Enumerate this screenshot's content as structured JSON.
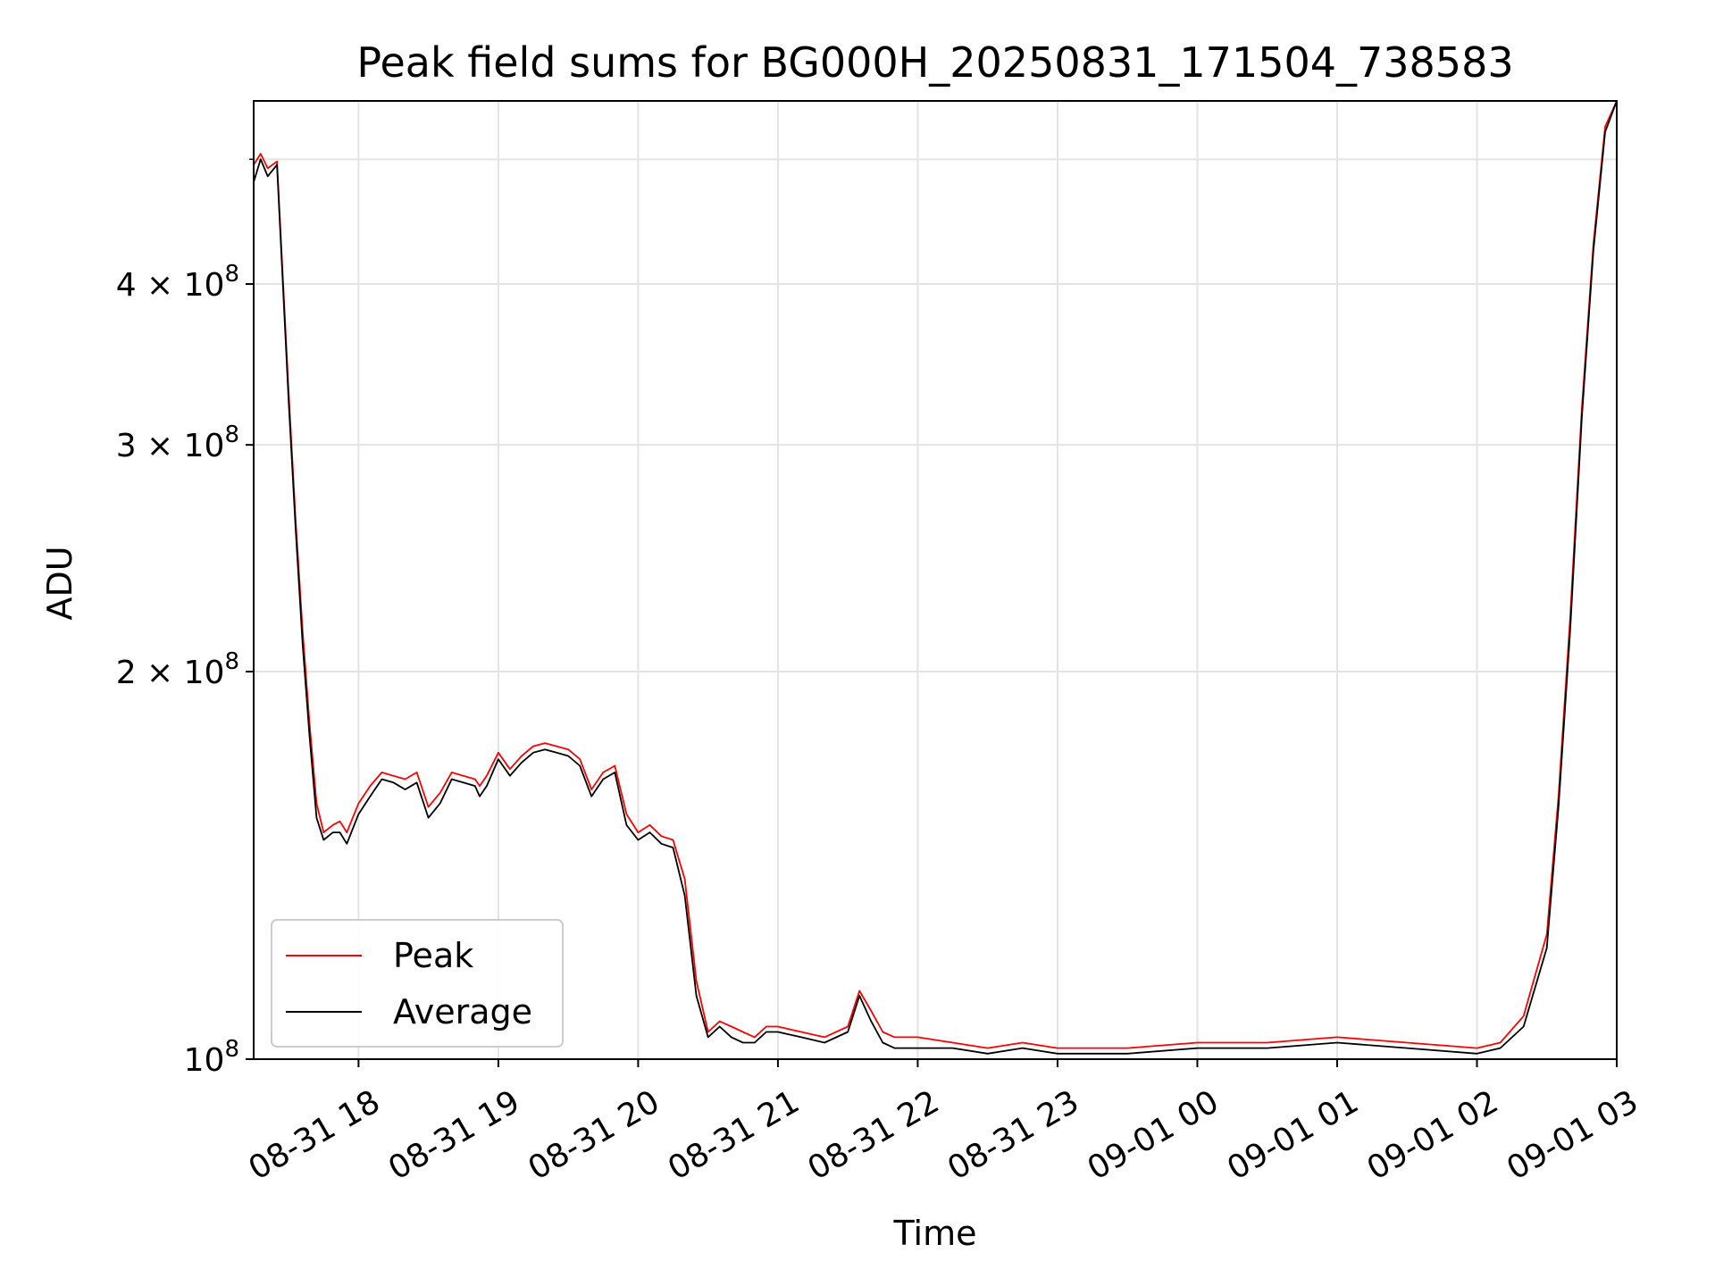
{
  "chart_data": {
    "type": "line",
    "title": "Peak field sums for BG000H_20250831_171504_738583",
    "xlabel": "Time",
    "ylabel": "ADU",
    "x_scale": "time",
    "y_scale": "log",
    "xlim": [
      "2025-08-31 17:15",
      "2025-09-01 03:00"
    ],
    "ylim": [
      100000000,
      555000000
    ],
    "x_ticks": [
      {
        "value": "2025-08-31 18:00",
        "label": "08-31 18"
      },
      {
        "value": "2025-08-31 19:00",
        "label": "08-31 19"
      },
      {
        "value": "2025-08-31 20:00",
        "label": "08-31 20"
      },
      {
        "value": "2025-08-31 21:00",
        "label": "08-31 21"
      },
      {
        "value": "2025-08-31 22:00",
        "label": "08-31 22"
      },
      {
        "value": "2025-08-31 23:00",
        "label": "08-31 23"
      },
      {
        "value": "2025-09-01 00:00",
        "label": "09-01 00"
      },
      {
        "value": "2025-09-01 01:00",
        "label": "09-01 01"
      },
      {
        "value": "2025-09-01 02:00",
        "label": "09-01 02"
      },
      {
        "value": "2025-09-01 03:00",
        "label": "09-01 03"
      }
    ],
    "y_ticks": [
      {
        "value": 100000000,
        "base": "10",
        "exp": "8"
      },
      {
        "value": 200000000,
        "base": "2 × 10",
        "exp": "8"
      },
      {
        "value": 300000000,
        "base": "3 × 10",
        "exp": "8"
      },
      {
        "value": 400000000,
        "base": "4 × 10",
        "exp": "8"
      }
    ],
    "grid": true,
    "legend_position": "lower-left",
    "series": [
      {
        "name": "Peak",
        "color": "#ff0000",
        "x": [
          "2025-08-31 17:15",
          "2025-08-31 17:18",
          "2025-08-31 17:21",
          "2025-08-31 17:25",
          "2025-08-31 17:30",
          "2025-08-31 17:33",
          "2025-08-31 17:36",
          "2025-08-31 17:39",
          "2025-08-31 17:42",
          "2025-08-31 17:45",
          "2025-08-31 17:49",
          "2025-08-31 17:52",
          "2025-08-31 17:55",
          "2025-08-31 18:00",
          "2025-08-31 18:05",
          "2025-08-31 18:10",
          "2025-08-31 18:15",
          "2025-08-31 18:20",
          "2025-08-31 18:25",
          "2025-08-31 18:30",
          "2025-08-31 18:35",
          "2025-08-31 18:40",
          "2025-08-31 18:45",
          "2025-08-31 18:50",
          "2025-08-31 18:52",
          "2025-08-31 18:55",
          "2025-08-31 19:00",
          "2025-08-31 19:05",
          "2025-08-31 19:10",
          "2025-08-31 19:15",
          "2025-08-31 19:20",
          "2025-08-31 19:25",
          "2025-08-31 19:30",
          "2025-08-31 19:35",
          "2025-08-31 19:40",
          "2025-08-31 19:45",
          "2025-08-31 19:50",
          "2025-08-31 19:55",
          "2025-08-31 20:00",
          "2025-08-31 20:05",
          "2025-08-31 20:10",
          "2025-08-31 20:15",
          "2025-08-31 20:20",
          "2025-08-31 20:25",
          "2025-08-31 20:30",
          "2025-08-31 20:35",
          "2025-08-31 20:40",
          "2025-08-31 20:45",
          "2025-08-31 20:50",
          "2025-08-31 20:55",
          "2025-08-31 21:00",
          "2025-08-31 21:10",
          "2025-08-31 21:20",
          "2025-08-31 21:30",
          "2025-08-31 21:35",
          "2025-08-31 21:40",
          "2025-08-31 21:45",
          "2025-08-31 21:50",
          "2025-08-31 22:00",
          "2025-08-31 22:15",
          "2025-08-31 22:30",
          "2025-08-31 22:45",
          "2025-08-31 23:00",
          "2025-08-31 23:30",
          "2025-09-01 00:00",
          "2025-09-01 00:30",
          "2025-09-01 01:00",
          "2025-09-01 01:30",
          "2025-09-01 02:00",
          "2025-09-01 02:10",
          "2025-09-01 02:20",
          "2025-09-01 02:30",
          "2025-09-01 02:35",
          "2025-09-01 02:40",
          "2025-09-01 02:45",
          "2025-09-01 02:50",
          "2025-09-01 02:55",
          "2025-09-01 03:00"
        ],
        "values": [
          495000000,
          505000000,
          492000000,
          498000000,
          330000000,
          262000000,
          215000000,
          182000000,
          158000000,
          150000000,
          152000000,
          153000000,
          150000000,
          158000000,
          163000000,
          167000000,
          166000000,
          165000000,
          167000000,
          157000000,
          161000000,
          167000000,
          166000000,
          165000000,
          163000000,
          166000000,
          173000000,
          168000000,
          172000000,
          175000000,
          176000000,
          175000000,
          174000000,
          171000000,
          162000000,
          167000000,
          169000000,
          155000000,
          150000000,
          152000000,
          149000000,
          148000000,
          138000000,
          115000000,
          105000000,
          107000000,
          106000000,
          105000000,
          104000000,
          106000000,
          106000000,
          105000000,
          104000000,
          106000000,
          113000000,
          109000000,
          105000000,
          104000000,
          104000000,
          103000000,
          102000000,
          103000000,
          102000000,
          102000000,
          103000000,
          103000000,
          104000000,
          103000000,
          102000000,
          103000000,
          108000000,
          125000000,
          160000000,
          220000000,
          320000000,
          430000000,
          530000000,
          555000000
        ]
      },
      {
        "name": "Average",
        "color": "#000000",
        "x": [
          "2025-08-31 17:15",
          "2025-08-31 17:18",
          "2025-08-31 17:21",
          "2025-08-31 17:25",
          "2025-08-31 17:30",
          "2025-08-31 17:33",
          "2025-08-31 17:36",
          "2025-08-31 17:39",
          "2025-08-31 17:42",
          "2025-08-31 17:45",
          "2025-08-31 17:49",
          "2025-08-31 17:52",
          "2025-08-31 17:55",
          "2025-08-31 18:00",
          "2025-08-31 18:05",
          "2025-08-31 18:10",
          "2025-08-31 18:15",
          "2025-08-31 18:20",
          "2025-08-31 18:25",
          "2025-08-31 18:30",
          "2025-08-31 18:35",
          "2025-08-31 18:40",
          "2025-08-31 18:45",
          "2025-08-31 18:50",
          "2025-08-31 18:52",
          "2025-08-31 18:55",
          "2025-08-31 19:00",
          "2025-08-31 19:05",
          "2025-08-31 19:10",
          "2025-08-31 19:15",
          "2025-08-31 19:20",
          "2025-08-31 19:25",
          "2025-08-31 19:30",
          "2025-08-31 19:35",
          "2025-08-31 19:40",
          "2025-08-31 19:45",
          "2025-08-31 19:50",
          "2025-08-31 19:55",
          "2025-08-31 20:00",
          "2025-08-31 20:05",
          "2025-08-31 20:10",
          "2025-08-31 20:15",
          "2025-08-31 20:20",
          "2025-08-31 20:25",
          "2025-08-31 20:30",
          "2025-08-31 20:35",
          "2025-08-31 20:40",
          "2025-08-31 20:45",
          "2025-08-31 20:50",
          "2025-08-31 20:55",
          "2025-08-31 21:00",
          "2025-08-31 21:10",
          "2025-08-31 21:20",
          "2025-08-31 21:30",
          "2025-08-31 21:35",
          "2025-08-31 21:40",
          "2025-08-31 21:45",
          "2025-08-31 21:50",
          "2025-08-31 22:00",
          "2025-08-31 22:15",
          "2025-08-31 22:30",
          "2025-08-31 22:45",
          "2025-08-31 23:00",
          "2025-08-31 23:30",
          "2025-09-01 00:00",
          "2025-09-01 00:30",
          "2025-09-01 01:00",
          "2025-09-01 01:30",
          "2025-09-01 02:00",
          "2025-09-01 02:10",
          "2025-09-01 02:20",
          "2025-09-01 02:30",
          "2025-09-01 02:35",
          "2025-09-01 02:40",
          "2025-09-01 02:45",
          "2025-09-01 02:50",
          "2025-09-01 02:55",
          "2025-09-01 03:00"
        ],
        "values": [
          480000000,
          500000000,
          485000000,
          495000000,
          325000000,
          258000000,
          210000000,
          178000000,
          154000000,
          148000000,
          150000000,
          150000000,
          147000000,
          155000000,
          160000000,
          165000000,
          164000000,
          162000000,
          164000000,
          154000000,
          158000000,
          165000000,
          164000000,
          163000000,
          160000000,
          163000000,
          171000000,
          166000000,
          170000000,
          173000000,
          174000000,
          173000000,
          172000000,
          169000000,
          160000000,
          165000000,
          167000000,
          152000000,
          148000000,
          150000000,
          147000000,
          146000000,
          134000000,
          112000000,
          104000000,
          106000000,
          104000000,
          103000000,
          103000000,
          105000000,
          105000000,
          104000000,
          103000000,
          105000000,
          112000000,
          107000000,
          103000000,
          102000000,
          102000000,
          102000000,
          101000000,
          102000000,
          101000000,
          101000000,
          102000000,
          102000000,
          103000000,
          102000000,
          101000000,
          102000000,
          106000000,
          122000000,
          157000000,
          215000000,
          315000000,
          425000000,
          525000000,
          555000000
        ]
      }
    ]
  }
}
